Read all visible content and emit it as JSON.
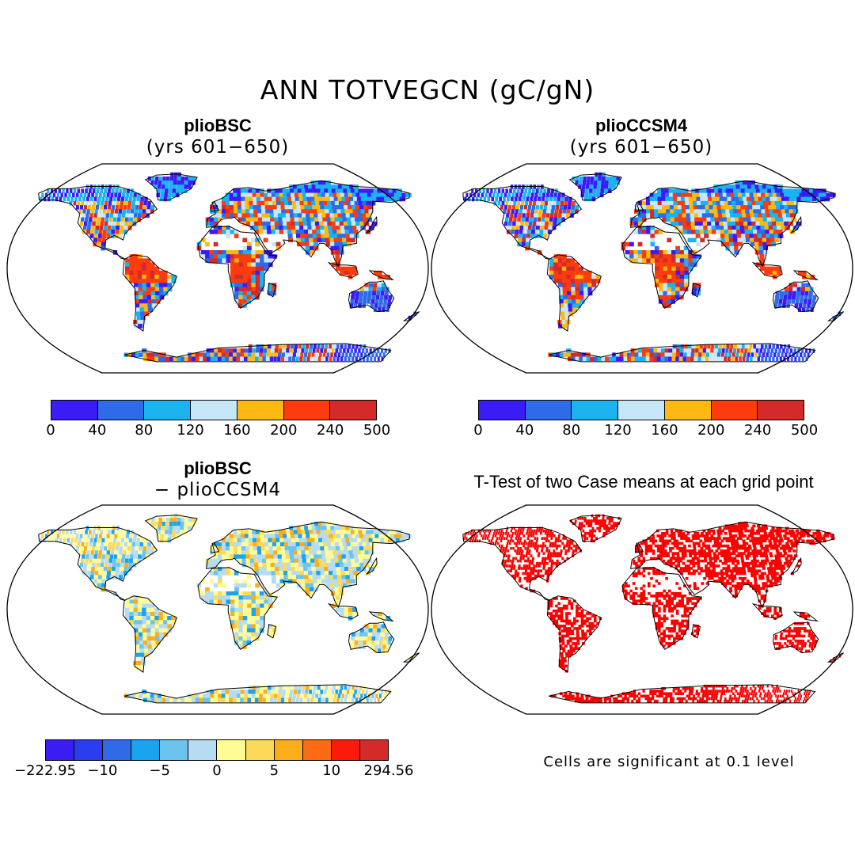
{
  "title": "ANN TOTVEGCN (gC/gN)",
  "panels": {
    "top_left": {
      "title": "plioBSC",
      "subtitle": "(yrs 601−650)"
    },
    "top_right": {
      "title": "plioCCSM4",
      "subtitle": "(yrs 601−650)"
    },
    "bottom_left": {
      "title": "plioBSC",
      "subtitle": "− plioCCSM4"
    },
    "bottom_right": {
      "title": "T-Test of two Case means at each grid point"
    }
  },
  "colorbar_main": {
    "colors": [
      "#3a1cf5",
      "#2f6be6",
      "#1ab2ef",
      "#c6e7f7",
      "#fdb913",
      "#fc3c0c",
      "#d32a2a"
    ],
    "labels": [
      "0",
      "40",
      "80",
      "120",
      "160",
      "200",
      "240",
      "500"
    ]
  },
  "colorbar_diff": {
    "colors": [
      "#3a1cf5",
      "#2a3ef0",
      "#2f6be6",
      "#1aa3ef",
      "#6cc3ee",
      "#b5dcf2",
      "#fffb95",
      "#fdd95a",
      "#fcae1a",
      "#fc6a12",
      "#fc1a0a",
      "#d32a2a"
    ],
    "labels": [
      "−222.95",
      "−10",
      "−5",
      "0",
      "5",
      "10",
      "294.56"
    ]
  },
  "significance_note": "Cells are significant at 0.1 level"
}
